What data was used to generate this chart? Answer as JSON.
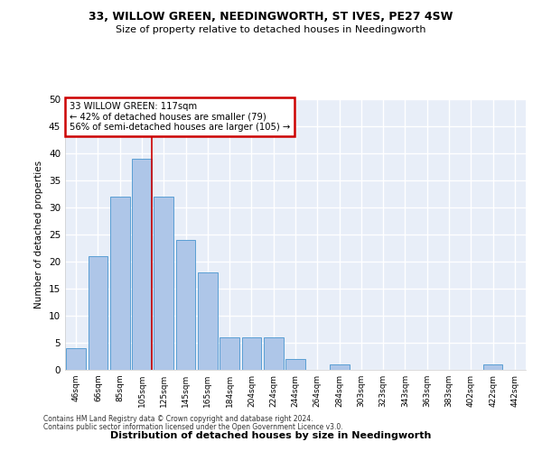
{
  "title": "33, WILLOW GREEN, NEEDINGWORTH, ST IVES, PE27 4SW",
  "subtitle": "Size of property relative to detached houses in Needingworth",
  "xlabel": "Distribution of detached houses by size in Needingworth",
  "ylabel": "Number of detached properties",
  "bar_labels": [
    "46sqm",
    "66sqm",
    "85sqm",
    "105sqm",
    "125sqm",
    "145sqm",
    "165sqm",
    "184sqm",
    "204sqm",
    "224sqm",
    "244sqm",
    "264sqm",
    "284sqm",
    "303sqm",
    "323sqm",
    "343sqm",
    "363sqm",
    "383sqm",
    "402sqm",
    "422sqm",
    "442sqm"
  ],
  "bar_values": [
    4,
    21,
    32,
    39,
    32,
    24,
    18,
    6,
    6,
    6,
    2,
    0,
    1,
    0,
    0,
    0,
    0,
    0,
    0,
    1,
    0
  ],
  "bar_color": "#aec6e8",
  "bar_edge_color": "#5a9fd4",
  "annotation_text": "33 WILLOW GREEN: 117sqm\n← 42% of detached houses are smaller (79)\n56% of semi-detached houses are larger (105) →",
  "annotation_box_color": "#ffffff",
  "annotation_box_edge": "#cc0000",
  "vline_x": 3.45,
  "vline_color": "#cc0000",
  "ylim": [
    0,
    50
  ],
  "yticks": [
    0,
    5,
    10,
    15,
    20,
    25,
    30,
    35,
    40,
    45,
    50
  ],
  "background_color": "#e8eef8",
  "grid_color": "#ffffff",
  "footer_line1": "Contains HM Land Registry data © Crown copyright and database right 2024.",
  "footer_line2": "Contains public sector information licensed under the Open Government Licence v3.0."
}
